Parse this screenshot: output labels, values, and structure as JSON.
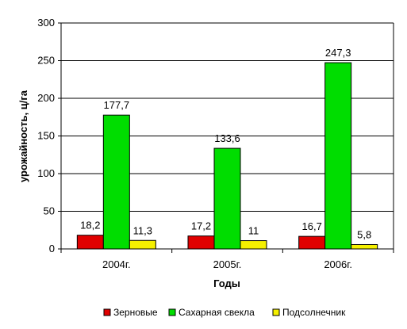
{
  "chart_data": {
    "type": "bar",
    "title": "",
    "xlabel": "Годы",
    "ylabel": "урожайность, ц/га",
    "categories": [
      "2004г.",
      "2005г.",
      "2006г."
    ],
    "series": [
      {
        "name": "Зерновые",
        "color": "#e00000",
        "values": [
          18.2,
          17.2,
          16.7
        ],
        "labels": [
          "18,2",
          "17,2",
          "16,7"
        ]
      },
      {
        "name": "Сахарная свекла",
        "color": "#00dd00",
        "values": [
          177.7,
          133.6,
          247.3
        ],
        "labels": [
          "177,7",
          "133,6",
          "247,3"
        ]
      },
      {
        "name": "Подсолнечник",
        "color": "#f5f000",
        "values": [
          11.3,
          11,
          5.8
        ],
        "labels": [
          "11,3",
          "11",
          "5,8"
        ]
      }
    ],
    "ylim": [
      0,
      300
    ],
    "yticks": [
      "0",
      "50",
      "100",
      "150",
      "200",
      "250",
      "300"
    ],
    "grid": true,
    "legend_position": "bottom"
  }
}
